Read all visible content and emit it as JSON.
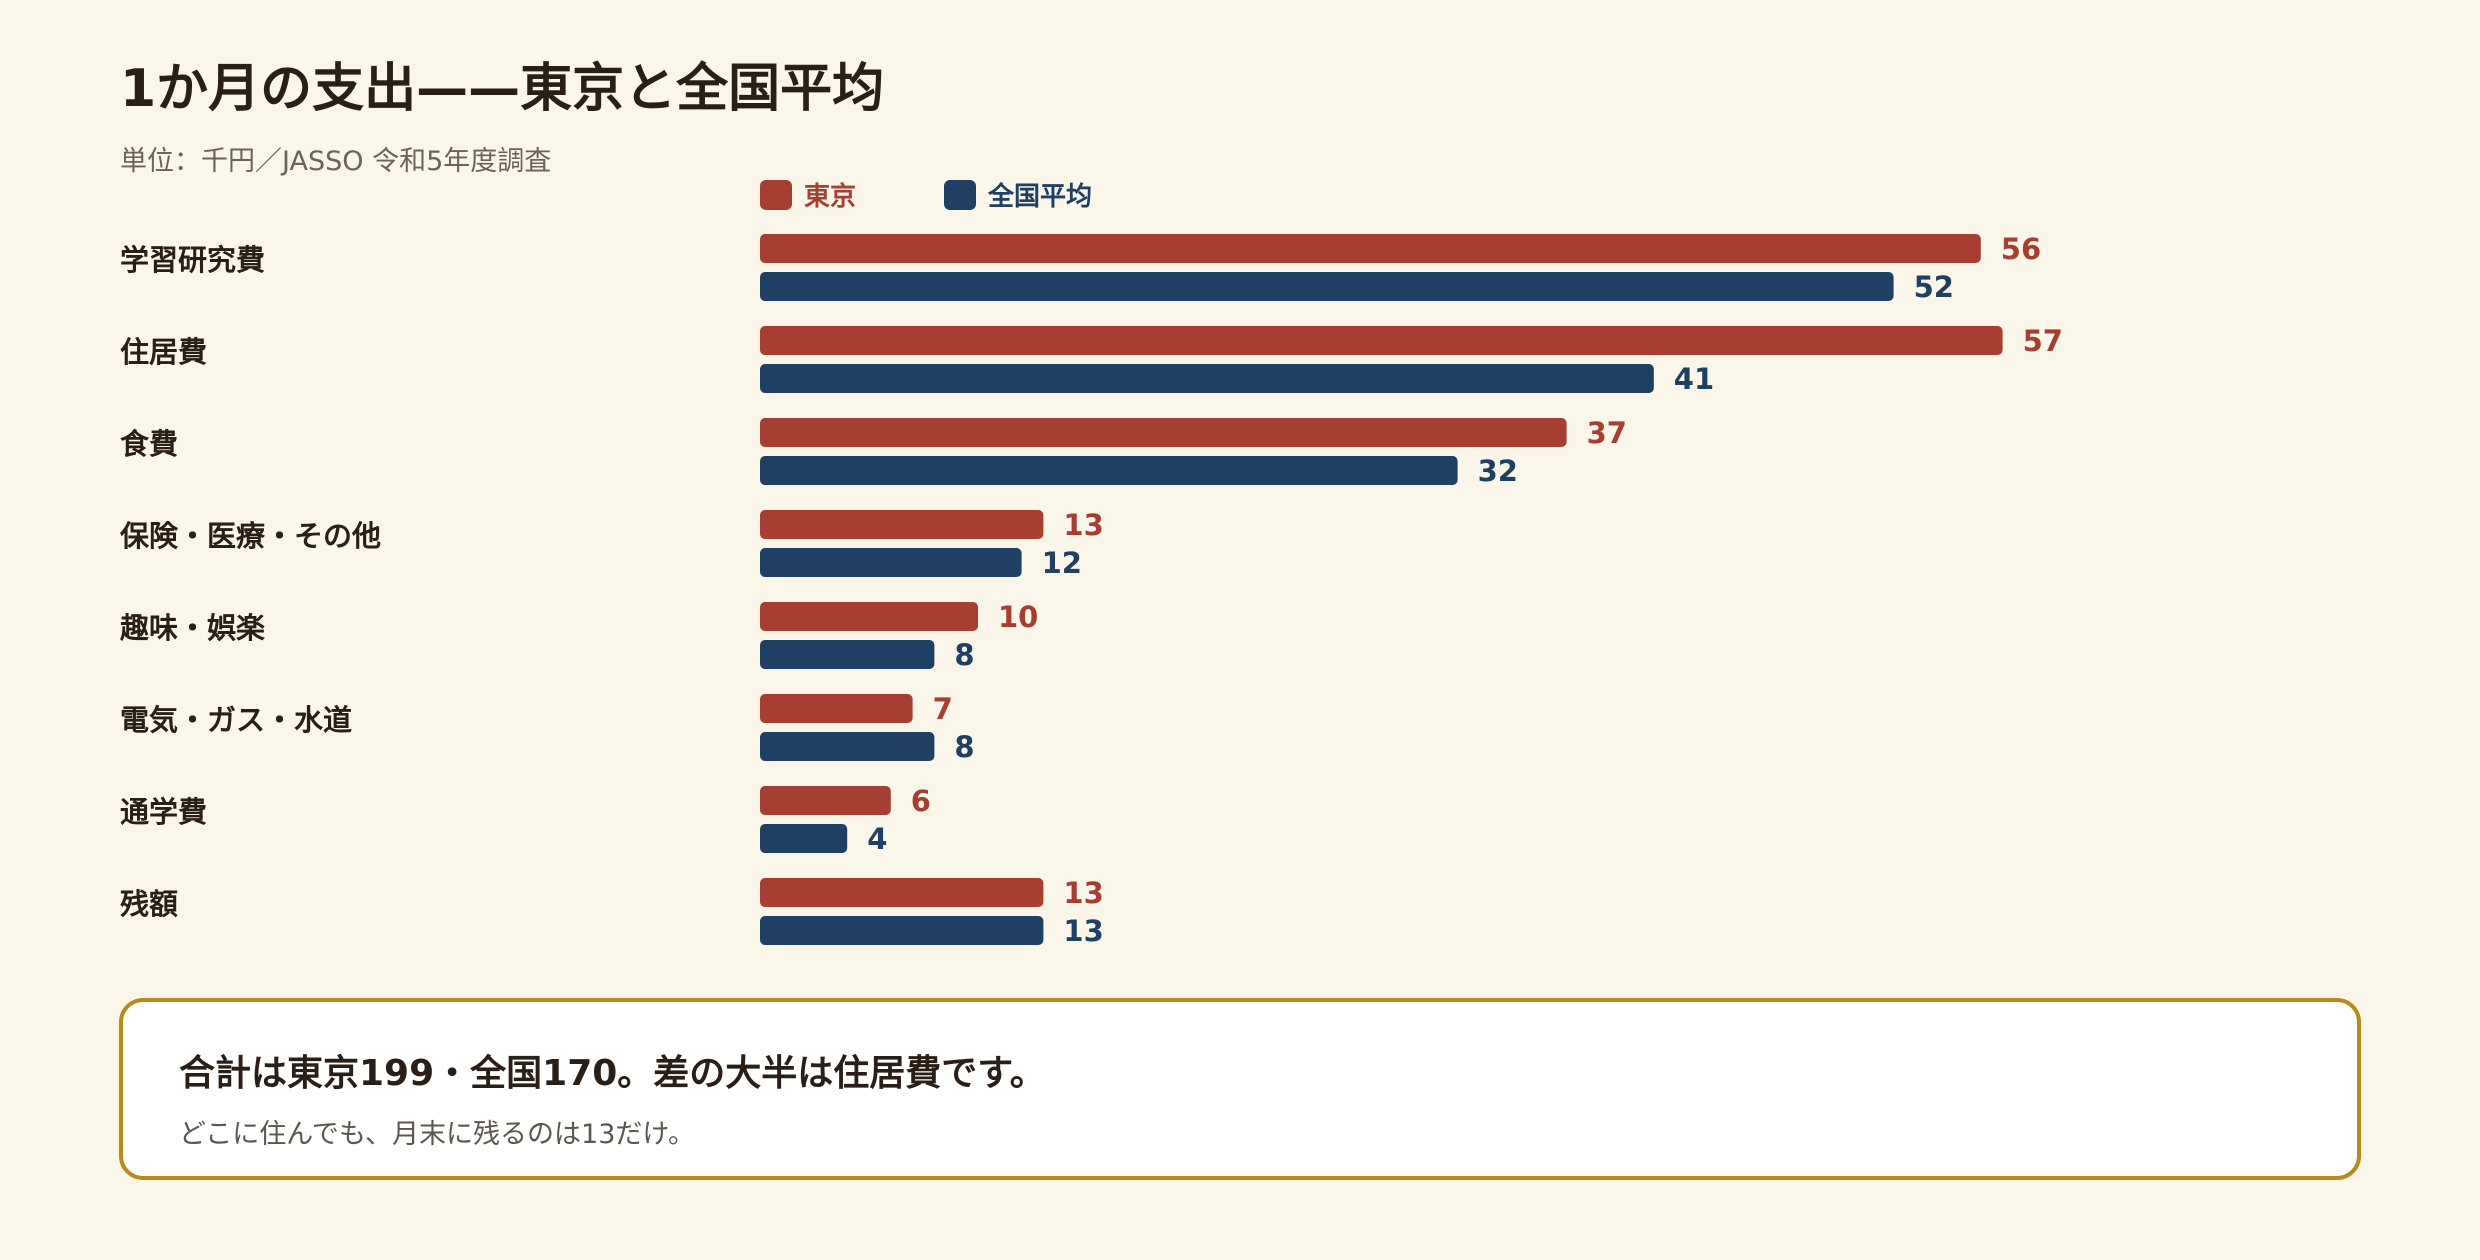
{
  "header": {
    "title": "1か月の支出——東京と全国平均",
    "subtitle": "単位：千円／JASSO 令和5年度調査"
  },
  "colors": {
    "tokyo": "#a63f31",
    "national": "#1f3f63",
    "background": "#fbf6ea",
    "note_border": "#b8891b"
  },
  "chart_data": {
    "type": "bar",
    "orientation": "horizontal",
    "categories": [
      "学習研究費",
      "住居費",
      "食費",
      "保険・医療・その他",
      "趣味・娯楽",
      "電気・ガス・水道",
      "通学費",
      "残額"
    ],
    "series": [
      {
        "name": "東京",
        "values": [
          56,
          57,
          37,
          13,
          10,
          7,
          6,
          13
        ]
      },
      {
        "name": "全国平均",
        "values": [
          52,
          41,
          32,
          12,
          8,
          8,
          4,
          13
        ]
      }
    ],
    "xlim": [
      0,
      60
    ],
    "grid": false,
    "legend": "top-left"
  },
  "note": {
    "headline": "合計は東京199・全国170。差の大半は住居費です。",
    "body": "どこに住んでも、月末に残るのは13だけ。"
  }
}
